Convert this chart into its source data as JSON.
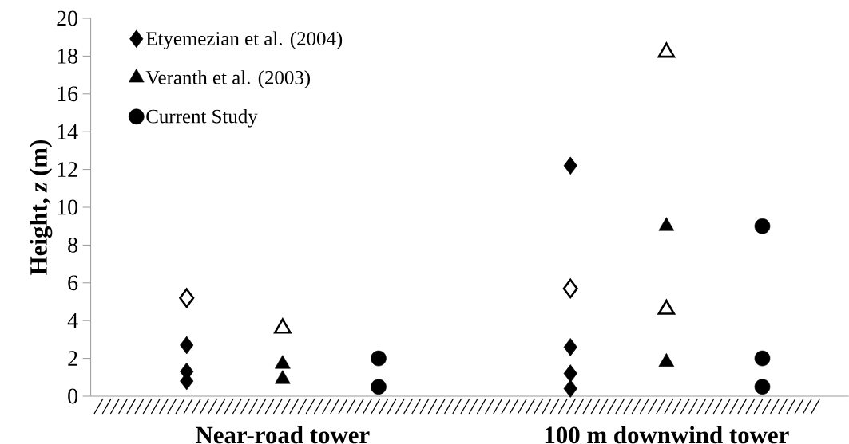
{
  "chart_data": {
    "type": "scatter",
    "ylabel": "**Height, *z* (m)**",
    "categories": [
      null,
      "Near-road tower",
      null,
      null,
      null,
      "100 m downwind tower",
      null
    ],
    "ylim": [
      0,
      20
    ],
    "yticks": [
      0,
      2,
      4,
      6,
      8,
      10,
      12,
      14,
      16,
      18,
      20
    ],
    "legend": "top left",
    "series": [
      {
        "name": "Etyemezian et al. (2004)",
        "color": "#000000",
        "marker": "diamond",
        "values": [
          2.7,
          null,
          null,
          null,
          12.2,
          null,
          null
        ]
      },
      {
        "color": "#000000",
        "marker": "diamond",
        "values": [
          1.3,
          null,
          null,
          null,
          2.6,
          null,
          null
        ]
      },
      {
        "color": "#000000",
        "marker": "diamond",
        "values": [
          0.8,
          null,
          null,
          null,
          1.2,
          null,
          null
        ]
      },
      {
        "color": "#000000",
        "marker": "diamond",
        "values": [
          null,
          null,
          null,
          null,
          0.4,
          null,
          null
        ]
      },
      {
        "color": "#ffffff",
        "marker": "diamond",
        "values": [
          5.2,
          null,
          null,
          null,
          5.7,
          null,
          null
        ]
      },
      {
        "name": "Veranth et al. (2003)",
        "color": "#000000",
        "marker": "triangle",
        "values": [
          null,
          1.7,
          null,
          null,
          null,
          9.0,
          null
        ]
      },
      {
        "color": "#000000",
        "marker": "triangle",
        "values": [
          null,
          0.9,
          null,
          null,
          null,
          1.8,
          null
        ]
      },
      {
        "color": "#ffffff",
        "marker": "triangle",
        "values": [
          null,
          3.6,
          null,
          null,
          null,
          18.2,
          null
        ]
      },
      {
        "color": "#ffffff",
        "marker": "triangle",
        "values": [
          null,
          null,
          null,
          null,
          null,
          4.6,
          null
        ]
      },
      {
        "name": "Current Study",
        "color": "#000000",
        "marker": "circle",
        "values": [
          null,
          null,
          2.0,
          null,
          null,
          null,
          9.0
        ]
      },
      {
        "color": "#000000",
        "marker": "circle",
        "values": [
          null,
          null,
          0.5,
          null,
          null,
          null,
          2.0
        ]
      },
      {
        "color": "#000000",
        "marker": "circle",
        "values": [
          null,
          null,
          null,
          null,
          null,
          null,
          0.5
        ]
      }
    ]
  }
}
